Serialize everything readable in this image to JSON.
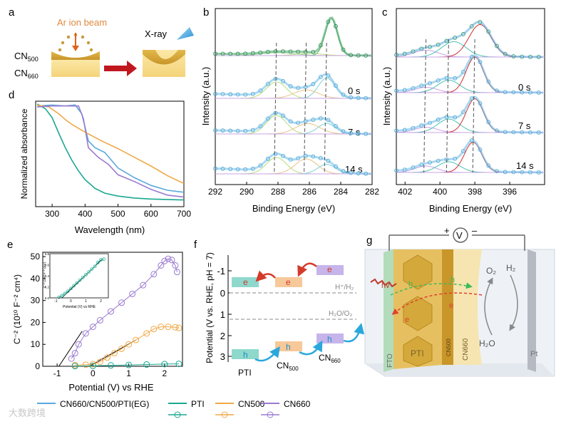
{
  "panel_letters": {
    "a": "a",
    "b": "b",
    "c": "c",
    "d": "d",
    "e": "e",
    "f": "f",
    "g": "g"
  },
  "panel_a": {
    "beam_label": "Ar ion beam",
    "xray_label": "X-ray",
    "layer_top_base": "CN",
    "layer_top_sub": "500",
    "layer_bottom_base": "CN",
    "layer_bottom_sub": "660"
  },
  "panel_b": {
    "ylabel": "Intensity (a.u.)",
    "xlabel": "Binding Energy (eV)",
    "time_labels": [
      "0 s",
      "7 s",
      "14 s"
    ],
    "xticks": [
      "292",
      "290",
      "288",
      "286",
      "284",
      "282"
    ]
  },
  "panel_c": {
    "ylabel": "Intensity (a.u.)",
    "xlabel": "Binding Energy (eV)",
    "time_labels": [
      "0 s",
      "7 s",
      "14 s"
    ],
    "xticks": [
      "402",
      "400",
      "398",
      "396"
    ]
  },
  "panel_f": {
    "ylabel": "Potential (V vs. RHE, pH = 7)",
    "yticks": [
      "-1",
      "0",
      "1",
      "2",
      "3"
    ],
    "h2_label": "H⁺/H₂",
    "o2_label": "H₂O/O₂",
    "materials": [
      "PTI",
      "CN",
      "CN"
    ],
    "material_subs": [
      "",
      "500",
      "660"
    ],
    "electron": "e",
    "hole": "h"
  },
  "panel_g": {
    "plus": "+",
    "minus": "–",
    "meter": "V",
    "h2o": "H₂O",
    "o2": "O₂",
    "h2": "H₂",
    "fto": "FTO",
    "pti": "PTI",
    "cn500": "CN500",
    "cn660": "CN660",
    "pt": "Pt",
    "hv": "hv",
    "electron": "e",
    "hole": "h"
  },
  "legend": {
    "items": [
      {
        "label": "CN660/CN500/PTI(EG)",
        "color": "#5aa8dc"
      },
      {
        "label": "PTI",
        "color": "#1aa890"
      },
      {
        "label": "CN500",
        "color": "#f0a848"
      },
      {
        "label": "CN660",
        "color": "#9b7ad0"
      }
    ]
  },
  "watermark": "大数跨境",
  "chart_data": [
    {
      "id": "d",
      "type": "line",
      "xlabel": "Wavelength (nm)",
      "ylabel": "Normalized absorbance",
      "xlim": [
        250,
        700
      ],
      "xticks": [
        "300",
        "400",
        "500",
        "600",
        "700"
      ],
      "series": [
        {
          "name": "CN660/CN500/PTI(EG)",
          "color": "#5aa8dc",
          "x": [
            255,
            300,
            340,
            370,
            390,
            410,
            430,
            460,
            500,
            550,
            600,
            650,
            700
          ],
          "y": [
            0.98,
            0.99,
            0.98,
            0.99,
            0.9,
            0.62,
            0.55,
            0.5,
            0.34,
            0.24,
            0.16,
            0.11,
            0.09
          ]
        },
        {
          "name": "PTI",
          "color": "#1aa890",
          "x": [
            255,
            280,
            300,
            320,
            340,
            360,
            380,
            400,
            430,
            460,
            500,
            550,
            600,
            700
          ],
          "y": [
            1.0,
            0.95,
            0.86,
            0.7,
            0.55,
            0.42,
            0.31,
            0.22,
            0.13,
            0.08,
            0.05,
            0.03,
            0.02,
            0.01
          ]
        },
        {
          "name": "CN500",
          "color": "#f0a848",
          "x": [
            255,
            290,
            320,
            340,
            360,
            400,
            450,
            500,
            550,
            600,
            650,
            700
          ],
          "y": [
            0.99,
            0.97,
            0.9,
            0.84,
            0.79,
            0.71,
            0.62,
            0.54,
            0.45,
            0.36,
            0.26,
            0.18
          ]
        },
        {
          "name": "CN660",
          "color": "#9b7ad0",
          "x": [
            255,
            300,
            350,
            380,
            395,
            410,
            440,
            470,
            500,
            550,
            600,
            650,
            700
          ],
          "y": [
            0.97,
            0.98,
            0.98,
            0.98,
            0.85,
            0.55,
            0.45,
            0.38,
            0.27,
            0.2,
            0.12,
            0.06,
            0.04
          ]
        }
      ]
    },
    {
      "id": "e",
      "type": "scatter",
      "xlabel": "Potential (V) vs RHE",
      "ylabel": "C⁻² (10¹⁰ F⁻² cm⁴)",
      "xlim": [
        -1.4,
        2.5
      ],
      "ylim": [
        0,
        52
      ],
      "xticks": [
        "-1",
        "0",
        "1",
        "2"
      ],
      "yticks": [
        "0",
        "10",
        "20",
        "30",
        "40",
        "50"
      ],
      "series": [
        {
          "name": "CN660",
          "color": "#9b7ad0",
          "x": [
            -0.6,
            -0.5,
            -0.4,
            -0.2,
            0,
            0.2,
            0.5,
            0.8,
            1.1,
            1.4,
            1.7,
            1.9,
            2.0,
            2.1,
            2.2,
            2.3,
            2.35
          ],
          "y": [
            3.5,
            6,
            10,
            15,
            18,
            21,
            25,
            29,
            33,
            37,
            42,
            46,
            48,
            49,
            48.5,
            46,
            43
          ]
        },
        {
          "name": "CN500",
          "color": "#f0a848",
          "x": [
            -0.5,
            -0.2,
            0,
            0.2,
            0.4,
            0.6,
            0.8,
            1.0,
            1.2,
            1.5,
            1.7,
            1.9,
            2.1,
            2.3,
            2.4
          ],
          "y": [
            0.5,
            0.7,
            1.0,
            2.0,
            4,
            6,
            8,
            10,
            12,
            15,
            17,
            18,
            18,
            17.8,
            17.5
          ]
        },
        {
          "name": "PTI",
          "color": "#1aa890",
          "x": [
            -0.5,
            0,
            0.5,
            1.0,
            1.5,
            2.0,
            2.4
          ],
          "y": [
            0.1,
            0.2,
            0.4,
            0.6,
            0.8,
            1.0,
            1.1
          ]
        }
      ],
      "inset": {
        "ylabel": "C⁻² (10¹³ F⁻² cm⁴)",
        "xlabel": "Potential (V) vs RHE",
        "xlim": [
          -1.4,
          2.5
        ],
        "ylim": [
          0,
          0.8
        ],
        "xticks": [
          "-1",
          "0",
          "1",
          "2"
        ],
        "yticks": [
          "0.0",
          "0.2",
          "0.4",
          "0.6",
          "0.8"
        ],
        "x": [
          -0.8,
          -0.6,
          -0.4,
          -0.2,
          0,
          0.2,
          0.4,
          0.6,
          0.8,
          1.0,
          1.2,
          1.4,
          1.6,
          1.8,
          2.0,
          2.2
        ],
        "y": [
          0.01,
          0.04,
          0.08,
          0.12,
          0.17,
          0.22,
          0.27,
          0.32,
          0.37,
          0.42,
          0.47,
          0.52,
          0.57,
          0.64,
          0.69,
          0.7
        ]
      }
    }
  ]
}
